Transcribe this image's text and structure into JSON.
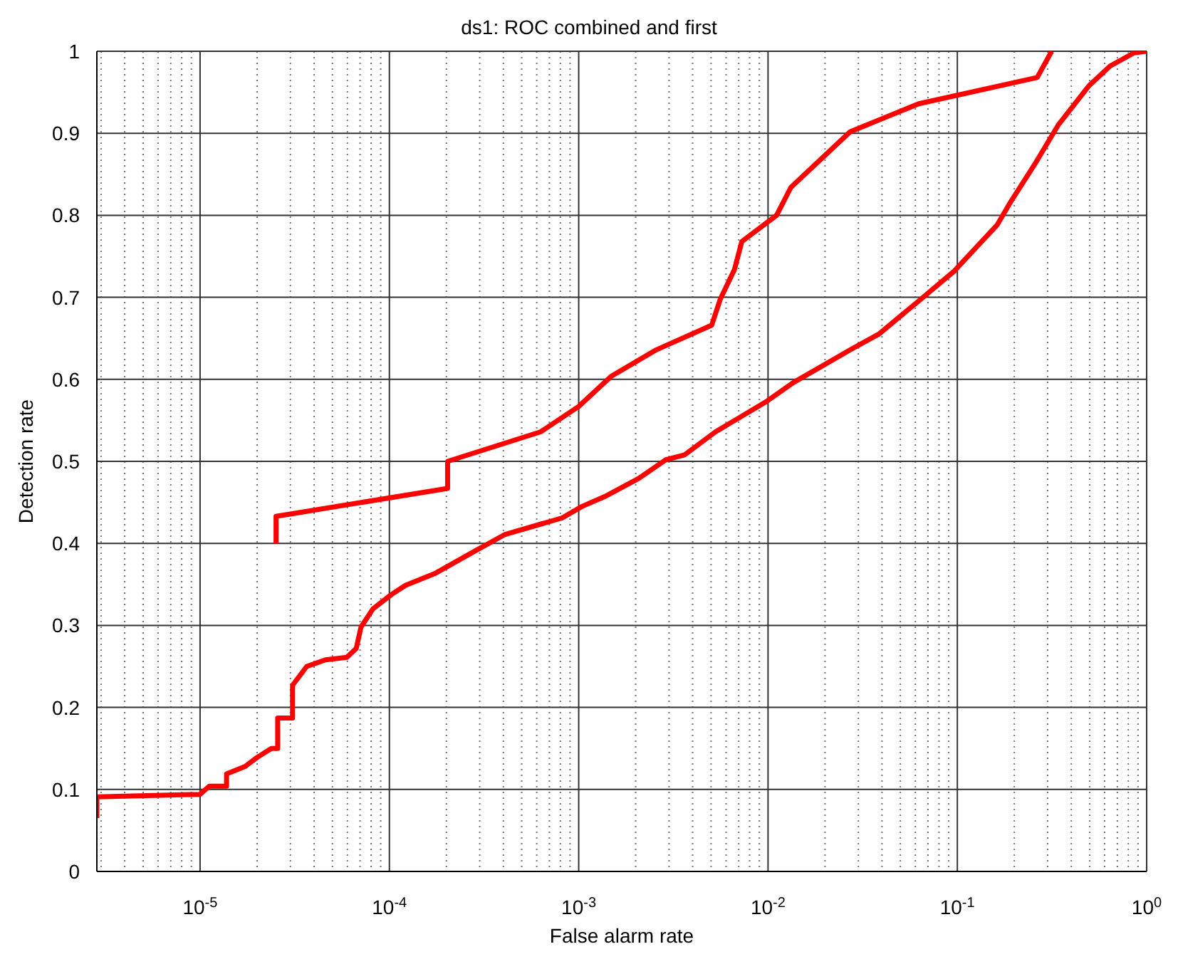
{
  "chart_data": {
    "type": "line",
    "title": "ds1: ROC combined and first",
    "xlabel": "False alarm rate",
    "ylabel": "Detection rate",
    "log": "x",
    "grid": true,
    "marker": "none",
    "line_style": "solid",
    "xlim": [
      2.85e-06,
      1
    ],
    "ylim": [
      0,
      1
    ],
    "xticks": [
      {
        "value": 1e-05,
        "label": "10$^{-5}$"
      },
      {
        "value": 0.0001,
        "label": "10$^{-4}$"
      },
      {
        "value": 0.001,
        "label": "10$^{-3}$"
      },
      {
        "value": 0.01,
        "label": "10$^{-2}$"
      },
      {
        "value": 0.1,
        "label": "10$^{-1}$"
      },
      {
        "value": 1,
        "label": "10$^{0}$"
      }
    ],
    "yticks": [
      0,
      0.1,
      0.2,
      0.3,
      0.4,
      0.5,
      0.6,
      0.7,
      0.8,
      0.9,
      1
    ],
    "series": [
      {
        "color": "#ff0000",
        "x": [
          2.52e-05,
          2.52e-05,
          0.000203,
          0.000203,
          0.00063,
          0.001,
          0.00149,
          0.00257,
          0.00504,
          0.0056,
          0.00665,
          0.00727,
          0.0111,
          0.0132,
          0.0272,
          0.0625,
          0.264,
          0.315
        ],
        "values": [
          0.4,
          0.433,
          0.467,
          0.5,
          0.536,
          0.567,
          0.604,
          0.636,
          0.666,
          0.698,
          0.734,
          0.768,
          0.8,
          0.834,
          0.902,
          0.936,
          0.968,
          1.0
        ]
      },
      {
        "color": "#ff0000",
        "x": [
          2.85e-06,
          2.85e-06,
          1e-05,
          1.12e-05,
          1.38e-05,
          1.38e-05,
          1.73e-05,
          2e-05,
          2.38e-05,
          2.57e-05,
          2.57e-05,
          3.08e-05,
          3.08e-05,
          3.66e-05,
          4.6e-05,
          5.96e-05,
          6.68e-05,
          7.08e-05,
          8.18e-05,
          0.000103,
          0.000122,
          0.000173,
          0.00029,
          0.000409,
          0.000817,
          0.00104,
          0.00137,
          0.00207,
          0.00289,
          0.00363,
          0.00528,
          0.00966,
          0.0136,
          0.0272,
          0.0384,
          0.0644,
          0.0963,
          0.162,
          0.192,
          0.256,
          0.341,
          0.496,
          0.641,
          0.857,
          1.0
        ],
        "values": [
          0.065,
          0.091,
          0.094,
          0.104,
          0.104,
          0.119,
          0.128,
          0.139,
          0.15,
          0.15,
          0.187,
          0.187,
          0.227,
          0.25,
          0.258,
          0.261,
          0.272,
          0.298,
          0.32,
          0.338,
          0.349,
          0.363,
          0.392,
          0.411,
          0.431,
          0.445,
          0.457,
          0.479,
          0.502,
          0.508,
          0.536,
          0.572,
          0.596,
          0.636,
          0.655,
          0.698,
          0.732,
          0.788,
          0.817,
          0.862,
          0.91,
          0.958,
          0.982,
          0.998,
          1.0
        ]
      }
    ]
  }
}
